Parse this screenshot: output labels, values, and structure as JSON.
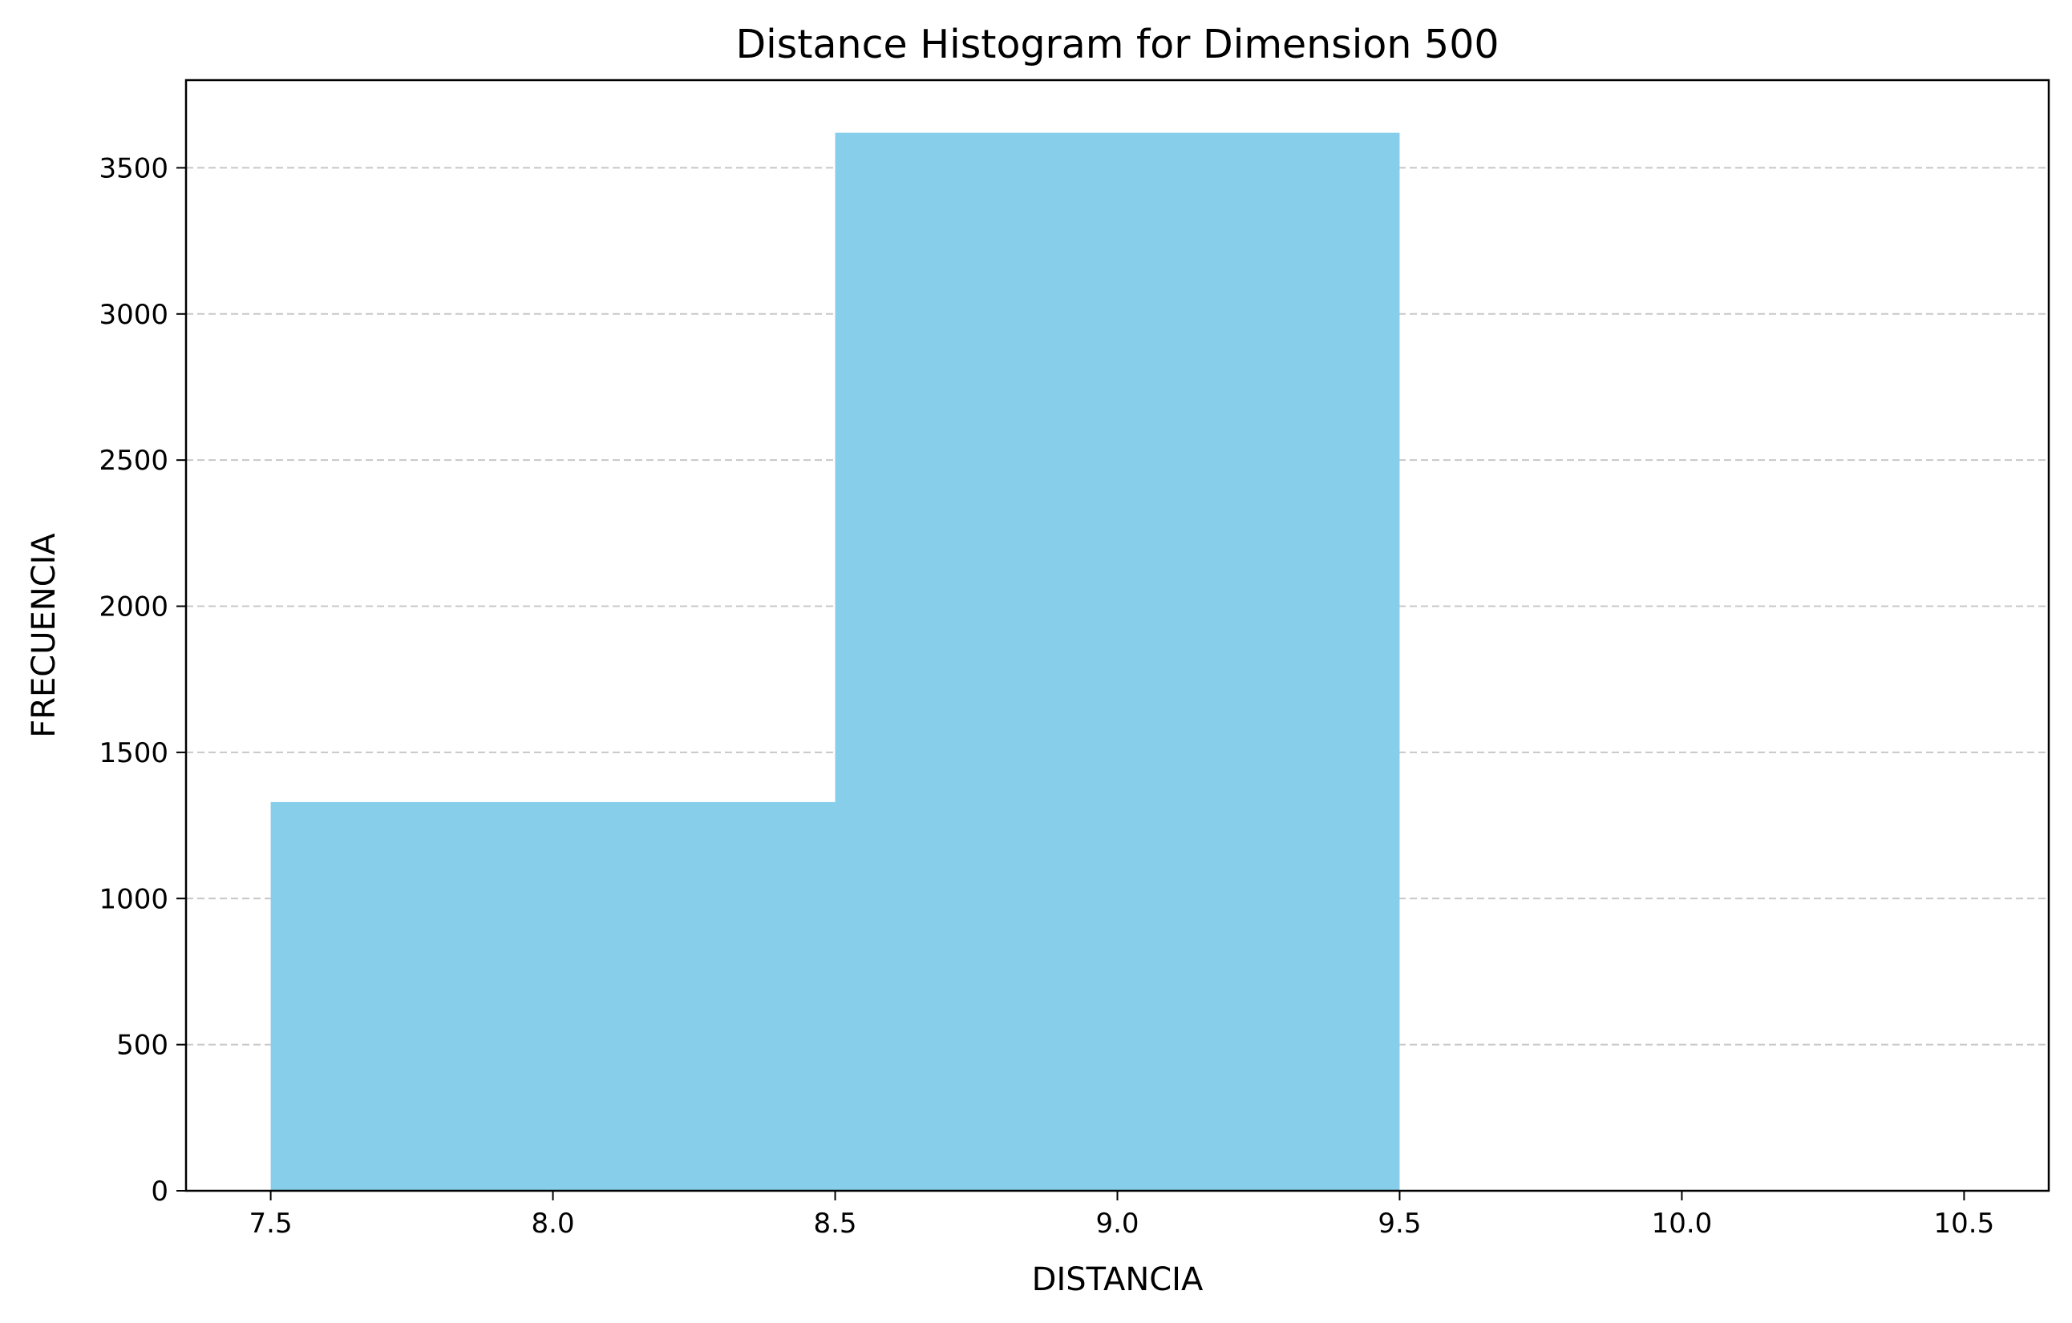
{
  "chart_data": {
    "type": "bar",
    "title": "Distance Histogram for Dimension 500",
    "xlabel": "DISTANCIA",
    "ylabel": "FRECUENCIA",
    "bins": [
      {
        "start": 7.5,
        "end": 8.5,
        "value": 1330
      },
      {
        "start": 8.5,
        "end": 9.5,
        "value": 3620
      }
    ],
    "xlim": [
      7.35,
      10.65
    ],
    "ylim": [
      0,
      3800
    ],
    "x_ticks": [
      "7.5",
      "8.0",
      "8.5",
      "9.0",
      "9.5",
      "10.0",
      "10.5"
    ],
    "y_ticks": [
      "0",
      "500",
      "1000",
      "1500",
      "2000",
      "2500",
      "3000",
      "3500"
    ],
    "grid": {
      "axis": "y",
      "style": "dashed"
    },
    "legend": "none",
    "bar_color": "#87ceeb",
    "grid_color": "#c8c8c8"
  }
}
